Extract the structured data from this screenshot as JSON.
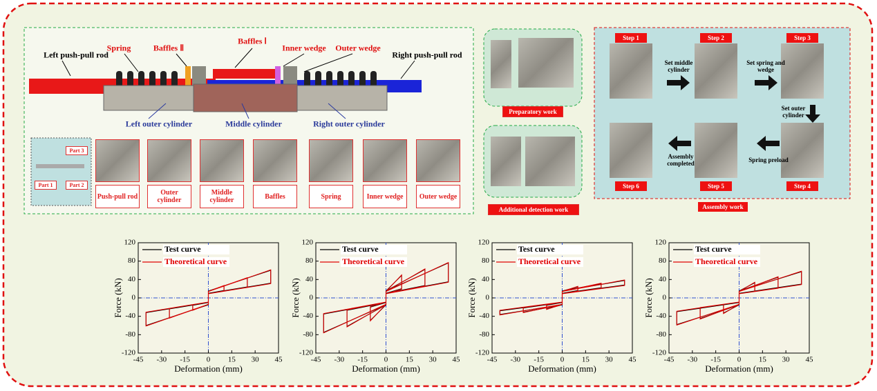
{
  "assembly_diagram": {
    "labels": [
      "Left push-pull rod",
      "Spring",
      "Baffles Ⅱ",
      "Baffles Ⅰ",
      "Inner wedge",
      "Outer wedge",
      "Right push-pull rod",
      "Left outer cylinder",
      "Middle cylinder",
      "Right outer cylinder"
    ]
  },
  "components": {
    "parts": [
      "Part 1",
      "Part 2",
      "Part 3"
    ],
    "items": [
      "Push-pull rod",
      "Outer cylinder",
      "Middle cylinder",
      "Baffles",
      "Spring",
      "Inner wedge",
      "Outer wedge"
    ]
  },
  "work_panels": {
    "preparatory": "Preparatory work",
    "detection": "Additional detection work"
  },
  "assembly_work": {
    "title": "Assembly work",
    "steps": [
      "Step 1",
      "Step 2",
      "Step 3",
      "Step 4",
      "Step 5",
      "Step 6"
    ],
    "actions": [
      "Set middle cylinder",
      "Set spring and wedge",
      "Set outer cylinder",
      "Spring preload",
      "Assembly completed"
    ]
  },
  "chart_data": [
    {
      "type": "line",
      "xlabel": "Deformation (mm)",
      "ylabel": "Force (kN)",
      "xlim": [
        -45,
        45
      ],
      "ylim": [
        -120,
        120
      ],
      "xticks": [
        -45,
        -30,
        -15,
        0,
        15,
        30,
        45
      ],
      "yticks": [
        -120,
        -80,
        -40,
        0,
        40,
        80,
        120
      ],
      "series": [
        {
          "name": "Test curve",
          "color": "#000000",
          "x": [
            0,
            10,
            10,
            0,
            0,
            -10,
            -10,
            0,
            0,
            25,
            25,
            0,
            0,
            -25,
            -25,
            0,
            0,
            40,
            40,
            0,
            0,
            -40,
            -40,
            0
          ],
          "values": [
            15,
            26,
            16,
            10,
            -15,
            -26,
            -16,
            -10,
            15,
            43,
            24,
            10,
            -15,
            -43,
            -24,
            -10,
            15,
            60,
            32,
            10,
            -15,
            -60,
            -32,
            -10
          ]
        },
        {
          "name": "Theoretical curve",
          "color": "#e00000",
          "x": [
            0,
            10,
            10,
            0,
            0,
            -10,
            -10,
            0,
            0,
            25,
            25,
            0,
            0,
            -25,
            -25,
            0,
            0,
            40,
            40,
            0,
            0,
            -40,
            -40,
            0
          ],
          "values": [
            14,
            27,
            15,
            9,
            -14,
            -27,
            -15,
            -9,
            14,
            44,
            23,
            9,
            -14,
            -44,
            -23,
            -9,
            14,
            61,
            31,
            9,
            -14,
            -61,
            -31,
            -9
          ]
        }
      ]
    },
    {
      "type": "line",
      "xlabel": "Deformation (mm)",
      "ylabel": "Force (kN)",
      "xlim": [
        -45,
        45
      ],
      "ylim": [
        -120,
        120
      ],
      "xticks": [
        -45,
        -30,
        -15,
        0,
        15,
        30,
        45
      ],
      "yticks": [
        -120,
        -80,
        -40,
        0,
        40,
        80,
        120
      ],
      "series": [
        {
          "name": "Test curve",
          "color": "#000000",
          "x": [
            0,
            10,
            10,
            0,
            0,
            -10,
            -10,
            0,
            0,
            25,
            25,
            0,
            0,
            -25,
            -25,
            0,
            0,
            40,
            40,
            0,
            0,
            -40,
            -40,
            0
          ],
          "values": [
            15,
            49,
            20,
            10,
            -15,
            -49,
            -20,
            -10,
            15,
            62,
            27,
            10,
            -15,
            -62,
            -27,
            -10,
            15,
            76,
            35,
            10,
            -15,
            -75,
            -35,
            -10
          ]
        },
        {
          "name": "Theoretical curve",
          "color": "#e00000",
          "x": [
            0,
            10,
            10,
            0,
            0,
            -10,
            -10,
            0,
            0,
            25,
            25,
            0,
            0,
            -25,
            -25,
            0,
            0,
            40,
            40,
            0,
            0,
            -40,
            -40,
            0
          ],
          "values": [
            14,
            50,
            19,
            9,
            -14,
            -50,
            -19,
            -9,
            14,
            63,
            26,
            9,
            -14,
            -63,
            -26,
            -9,
            14,
            77,
            34,
            9,
            -14,
            -76,
            -34,
            -9
          ]
        }
      ]
    },
    {
      "type": "line",
      "xlabel": "Deformation (mm)",
      "ylabel": "Force (kN)",
      "xlim": [
        -45,
        45
      ],
      "ylim": [
        -120,
        120
      ],
      "xticks": [
        -45,
        -30,
        -15,
        0,
        15,
        30,
        45
      ],
      "yticks": [
        -120,
        -80,
        -40,
        0,
        40,
        80,
        120
      ],
      "series": [
        {
          "name": "Test curve",
          "color": "#000000",
          "x": [
            0,
            10,
            10,
            0,
            0,
            -10,
            -10,
            0,
            0,
            25,
            25,
            0,
            0,
            -25,
            -25,
            0,
            0,
            40,
            40,
            0,
            0,
            -40,
            -40,
            0
          ],
          "values": [
            15,
            24,
            16,
            10,
            -15,
            -24,
            -16,
            -10,
            15,
            31,
            22,
            10,
            -15,
            -31,
            -22,
            -10,
            15,
            38,
            28,
            10,
            -15,
            -36,
            -28,
            -10
          ]
        },
        {
          "name": "Theoretical curve",
          "color": "#e00000",
          "x": [
            0,
            10,
            10,
            0,
            0,
            -10,
            -10,
            0,
            0,
            25,
            25,
            0,
            0,
            -25,
            -25,
            0,
            0,
            40,
            40,
            0,
            0,
            -40,
            -40,
            0
          ],
          "values": [
            14,
            25,
            15,
            9,
            -14,
            -25,
            -15,
            -9,
            14,
            32,
            21,
            9,
            -14,
            -32,
            -21,
            -9,
            14,
            39,
            27,
            9,
            -14,
            -37,
            -27,
            -9
          ]
        }
      ]
    },
    {
      "type": "line",
      "xlabel": "Deformation (mm)",
      "ylabel": "Force (kN)",
      "xlim": [
        -45,
        45
      ],
      "ylim": [
        -120,
        120
      ],
      "xticks": [
        -45,
        -30,
        -15,
        0,
        15,
        30,
        45
      ],
      "yticks": [
        -120,
        -80,
        -40,
        0,
        40,
        80,
        120
      ],
      "series": [
        {
          "name": "Test curve",
          "color": "#000000",
          "x": [
            0,
            10,
            10,
            0,
            0,
            -10,
            -10,
            0,
            0,
            25,
            25,
            0,
            0,
            -25,
            -25,
            0,
            0,
            40,
            40,
            0,
            0,
            -40,
            -40,
            0
          ],
          "values": [
            15,
            33,
            15,
            10,
            -15,
            -33,
            -15,
            -10,
            15,
            45,
            22,
            10,
            -15,
            -45,
            -22,
            -10,
            15,
            57,
            30,
            10,
            -15,
            -58,
            -30,
            -10
          ]
        },
        {
          "name": "Theoretical curve",
          "color": "#e00000",
          "x": [
            0,
            10,
            10,
            0,
            0,
            -10,
            -10,
            0,
            0,
            25,
            25,
            0,
            0,
            -25,
            -25,
            0,
            0,
            40,
            40,
            0,
            0,
            -40,
            -40,
            0
          ],
          "values": [
            14,
            34,
            14,
            9,
            -14,
            -34,
            -14,
            -9,
            14,
            46,
            21,
            9,
            -14,
            -46,
            -21,
            -9,
            14,
            58,
            29,
            9,
            -14,
            -59,
            -29,
            -9
          ]
        }
      ]
    }
  ]
}
